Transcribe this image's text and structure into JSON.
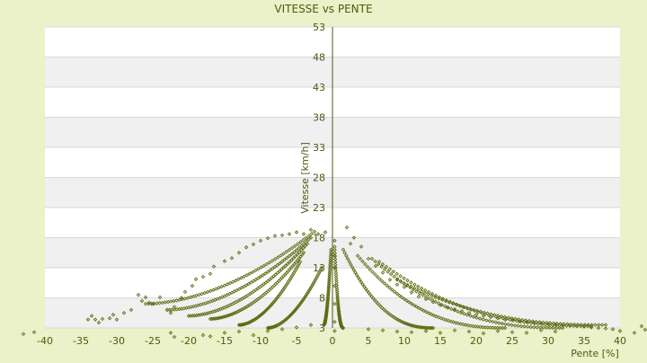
{
  "chart_data": {
    "type": "scatter",
    "title": "VITESSE vs PENTE",
    "xlabel": "Pente [%]",
    "ylabel": "Vitesse [km/h]",
    "xlim": [
      -40,
      40
    ],
    "ylim": [
      3,
      53
    ],
    "x_ticks": [
      -40,
      -35,
      -30,
      -25,
      -20,
      -15,
      -10,
      -5,
      0,
      5,
      10,
      15,
      20,
      25,
      30,
      35,
      40
    ],
    "y_ticks": [
      3,
      8,
      13,
      18,
      23,
      28,
      33,
      38,
      43,
      48,
      53
    ],
    "grid": true,
    "legend": "none",
    "colors": {
      "page_background": "#ebf1c8",
      "plot_background": "#ffffff",
      "band": "#f0f0f0",
      "gridline": "#d9d9d9",
      "marker": "#5c6d14",
      "axis": "#4e5a10",
      "text": "#4e5a10"
    },
    "marker_symbol": "diamond",
    "series": [
      {
        "points": [
          [
            -43,
            2
          ],
          [
            -41.5,
            2.3
          ],
          [
            -34,
            4.4
          ],
          [
            -33.5,
            5
          ],
          [
            -33,
            4.4
          ],
          [
            -32.5,
            3.9
          ],
          [
            -32,
            4.5
          ],
          [
            -31,
            4.6
          ],
          [
            -30.5,
            5.2
          ],
          [
            -30,
            4.4
          ],
          [
            -29,
            5.5
          ],
          [
            -28,
            6
          ],
          [
            -27,
            8.5
          ],
          [
            -26.5,
            7.5
          ],
          [
            -26,
            8.1
          ],
          [
            -25.5,
            7.2
          ],
          [
            -25,
            7
          ],
          [
            -24,
            8.1
          ],
          [
            -23,
            6
          ],
          [
            -22.5,
            5.5
          ],
          [
            -22,
            6.5
          ],
          [
            -21,
            8
          ],
          [
            -20.5,
            9
          ],
          [
            -19.5,
            10
          ],
          [
            -19,
            11.1
          ],
          [
            -18,
            11.5
          ],
          [
            -17,
            12
          ],
          [
            -16.5,
            13.2
          ],
          [
            -15,
            14.1
          ],
          [
            -14,
            14.6
          ],
          [
            -13,
            15.5
          ],
          [
            -12,
            16.4
          ],
          [
            -11,
            16.9
          ],
          [
            -10,
            17.5
          ],
          [
            -9,
            17.9
          ],
          [
            -8,
            18.3
          ],
          [
            -7,
            18.4
          ],
          [
            -6,
            18.6
          ],
          [
            -5,
            18.9
          ],
          [
            -4,
            18.6
          ],
          [
            -3,
            19.3
          ],
          [
            -2,
            18.6
          ],
          [
            -1,
            18.9
          ],
          [
            -22.5,
            2.2
          ],
          [
            -22,
            1.5
          ],
          [
            -18,
            1.8
          ],
          [
            -17,
            1.6
          ],
          [
            -15,
            2.2
          ],
          [
            -13,
            2.4
          ],
          [
            -11,
            1.8
          ],
          [
            -9,
            2.5
          ],
          [
            -7,
            2.8
          ],
          [
            -5,
            3.1
          ],
          [
            -3,
            3.5
          ],
          [
            2.5,
            17
          ],
          [
            3,
            18
          ],
          [
            4,
            16.5
          ],
          [
            2,
            19.7
          ],
          [
            5,
            14.5
          ],
          [
            6,
            13.3
          ],
          [
            7,
            12.2
          ],
          [
            8,
            11
          ],
          [
            9,
            10.2
          ],
          [
            10,
            9.8
          ],
          [
            11,
            8.9
          ],
          [
            12,
            8.2
          ],
          [
            13,
            7.8
          ],
          [
            14,
            7.3
          ],
          [
            15,
            6.8
          ],
          [
            16,
            6.4
          ],
          [
            17,
            6.1
          ],
          [
            18,
            5.8
          ],
          [
            19,
            5.5
          ],
          [
            20,
            5.2
          ],
          [
            21,
            5
          ],
          [
            22,
            4.8
          ],
          [
            23,
            4.6
          ],
          [
            24,
            4.4
          ],
          [
            25,
            4.3
          ],
          [
            26,
            4.1
          ],
          [
            27,
            4
          ],
          [
            28,
            3.9
          ],
          [
            29,
            3.8
          ],
          [
            30,
            3.7
          ],
          [
            31,
            3.6
          ],
          [
            32,
            3.5
          ],
          [
            33,
            3.4
          ],
          [
            34,
            3.3
          ],
          [
            35,
            3.2
          ],
          [
            36,
            3.1
          ],
          [
            37,
            3
          ],
          [
            38,
            2.9
          ],
          [
            39,
            2.8
          ],
          [
            40,
            2.5
          ],
          [
            42,
            2.2
          ],
          [
            43,
            3.3
          ],
          [
            43.5,
            2.7
          ],
          [
            5,
            2.8
          ],
          [
            7,
            2.6
          ],
          [
            9,
            2.4
          ],
          [
            11,
            2.3
          ],
          [
            13,
            2.5
          ],
          [
            15,
            2.2
          ],
          [
            17,
            2.6
          ],
          [
            19,
            2.4
          ],
          [
            21,
            2.1
          ],
          [
            23,
            2.5
          ],
          [
            25,
            2.3
          ],
          [
            27,
            2.2
          ],
          [
            29,
            2.6
          ],
          [
            31,
            2.4
          ],
          [
            0.3,
            4
          ],
          [
            0.3,
            7
          ],
          [
            0.3,
            10
          ],
          [
            0.3,
            13
          ],
          [
            0.3,
            15
          ],
          [
            0.3,
            17.5
          ],
          [
            0.3,
            2.5
          ]
        ]
      }
    ],
    "curves": [
      {
        "side": "left",
        "x_start": -26,
        "x_end": -2.5,
        "y_start": 7,
        "y_end": 19
      },
      {
        "side": "left",
        "x_start": -23,
        "x_end": -3,
        "y_start": 6,
        "y_end": 18
      },
      {
        "side": "left",
        "x_start": -20,
        "x_end": -3.5,
        "y_start": 5,
        "y_end": 17
      },
      {
        "side": "left",
        "x_start": -17,
        "x_end": -4,
        "y_start": 4.5,
        "y_end": 15.5
      },
      {
        "side": "left",
        "x_start": -13,
        "x_end": -4.5,
        "y_start": 3.5,
        "y_end": 14
      },
      {
        "side": "left",
        "x_start": -9,
        "x_end": -1.5,
        "y_start": 3,
        "y_end": 13
      },
      {
        "side": "left",
        "x_start": -1.2,
        "x_end": -0.2,
        "y_start": 3.5,
        "y_end": 16
      },
      {
        "side": "right",
        "x_start": 0.3,
        "x_end": 1.5,
        "y_start": 16.5,
        "y_end": 3
      },
      {
        "side": "right",
        "x_start": 1.5,
        "x_end": 14,
        "y_start": 16,
        "y_end": 3
      },
      {
        "side": "right",
        "x_start": 3.5,
        "x_end": 24,
        "y_start": 15,
        "y_end": 3
      },
      {
        "side": "right",
        "x_start": 5.5,
        "x_end": 32,
        "y_start": 14.5,
        "y_end": 3
      },
      {
        "side": "right",
        "x_start": 6.5,
        "x_end": 36,
        "y_start": 14,
        "y_end": 3.3
      },
      {
        "side": "right",
        "x_start": 9,
        "x_end": 38,
        "y_start": 11,
        "y_end": 3.5
      }
    ]
  }
}
